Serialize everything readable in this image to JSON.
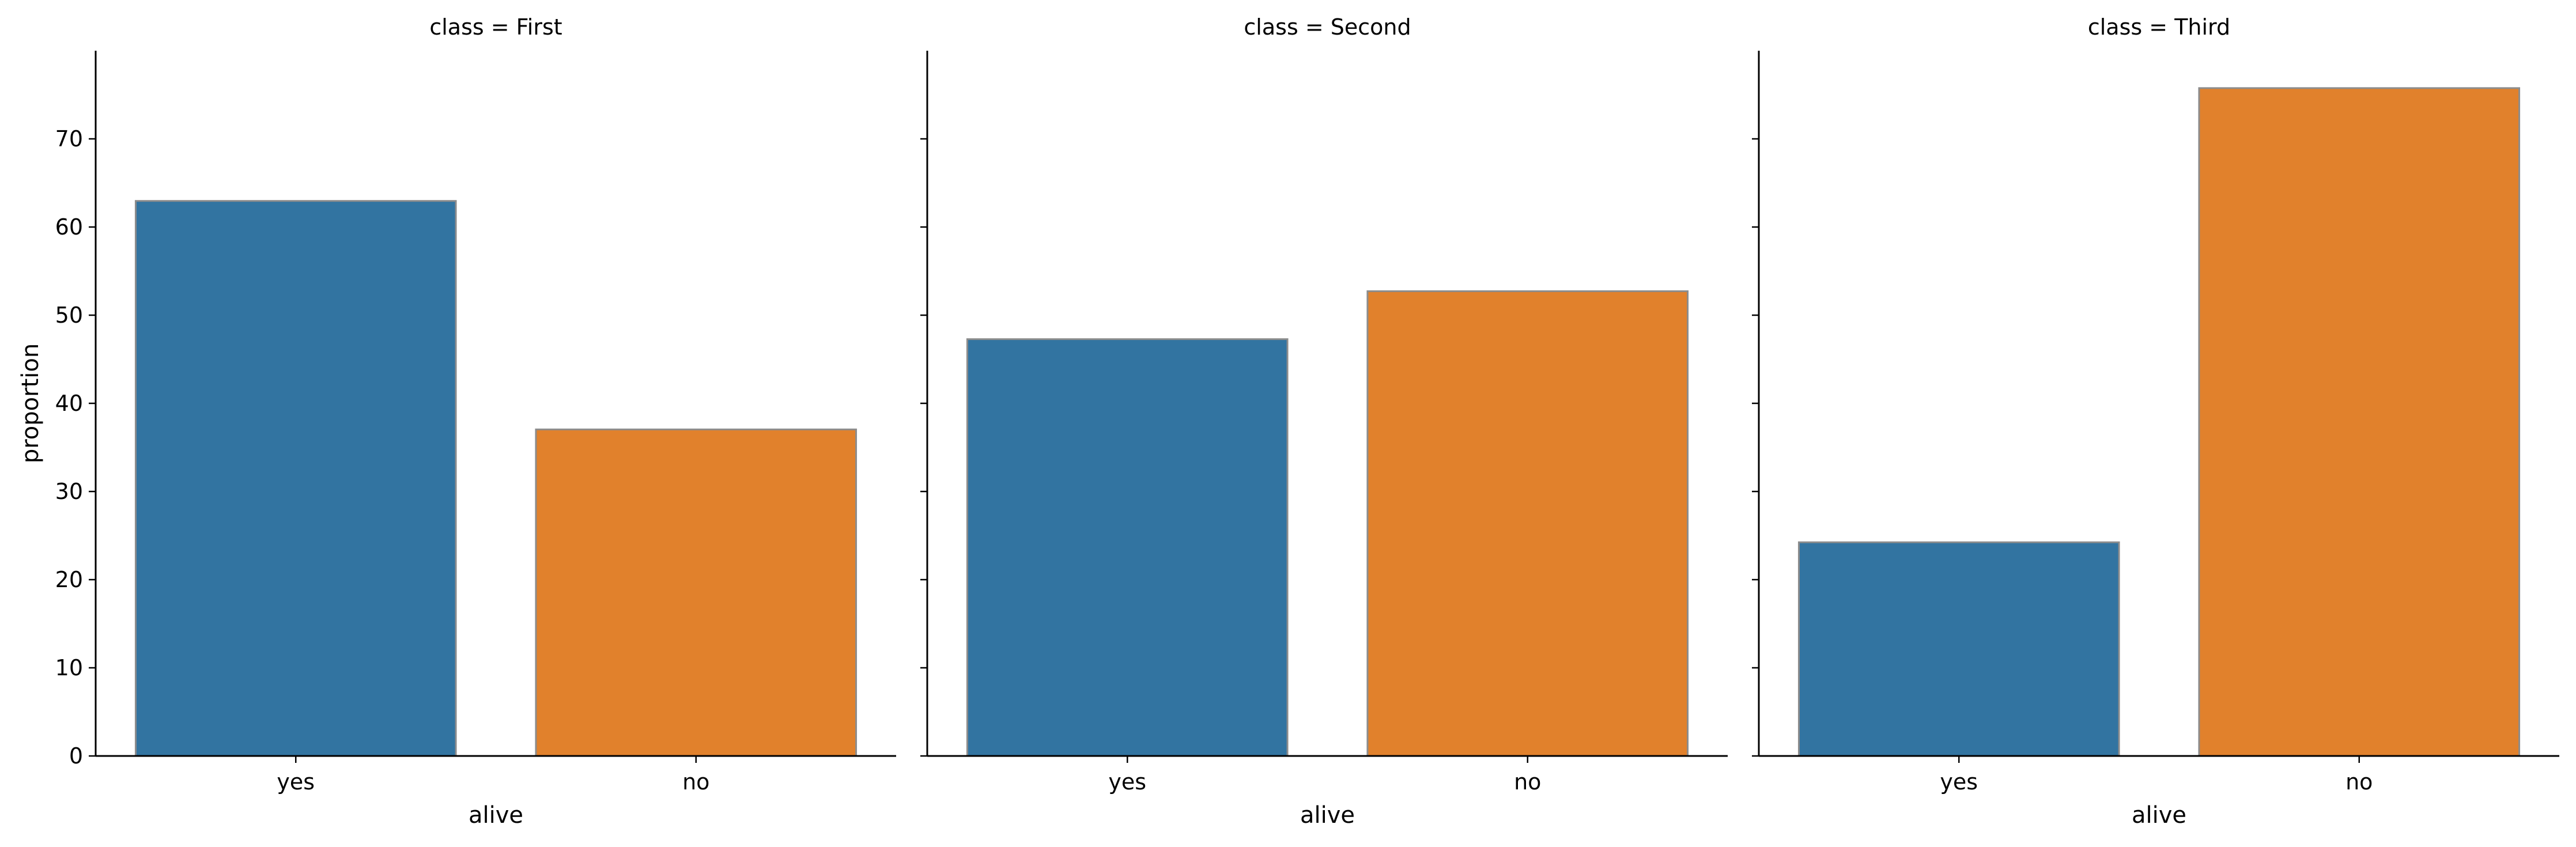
{
  "chart_data": {
    "type": "bar",
    "ylabel": "proportion",
    "xlabel": "alive",
    "categories": [
      "yes",
      "no"
    ],
    "ylim": [
      0,
      80
    ],
    "yticks": [
      0,
      10,
      20,
      30,
      40,
      50,
      60,
      70
    ],
    "colors": {
      "yes": "#3274a1",
      "no": "#e1812c",
      "bar_edge": "#8c8c8c",
      "axis": "#000000"
    },
    "grid": false,
    "legend": "none",
    "panels": [
      {
        "title": "class = First",
        "values": [
          62.96,
          37.04
        ]
      },
      {
        "title": "class = Second",
        "values": [
          47.28,
          52.72
        ]
      },
      {
        "title": "class = Third",
        "values": [
          24.24,
          75.76
        ]
      }
    ]
  }
}
